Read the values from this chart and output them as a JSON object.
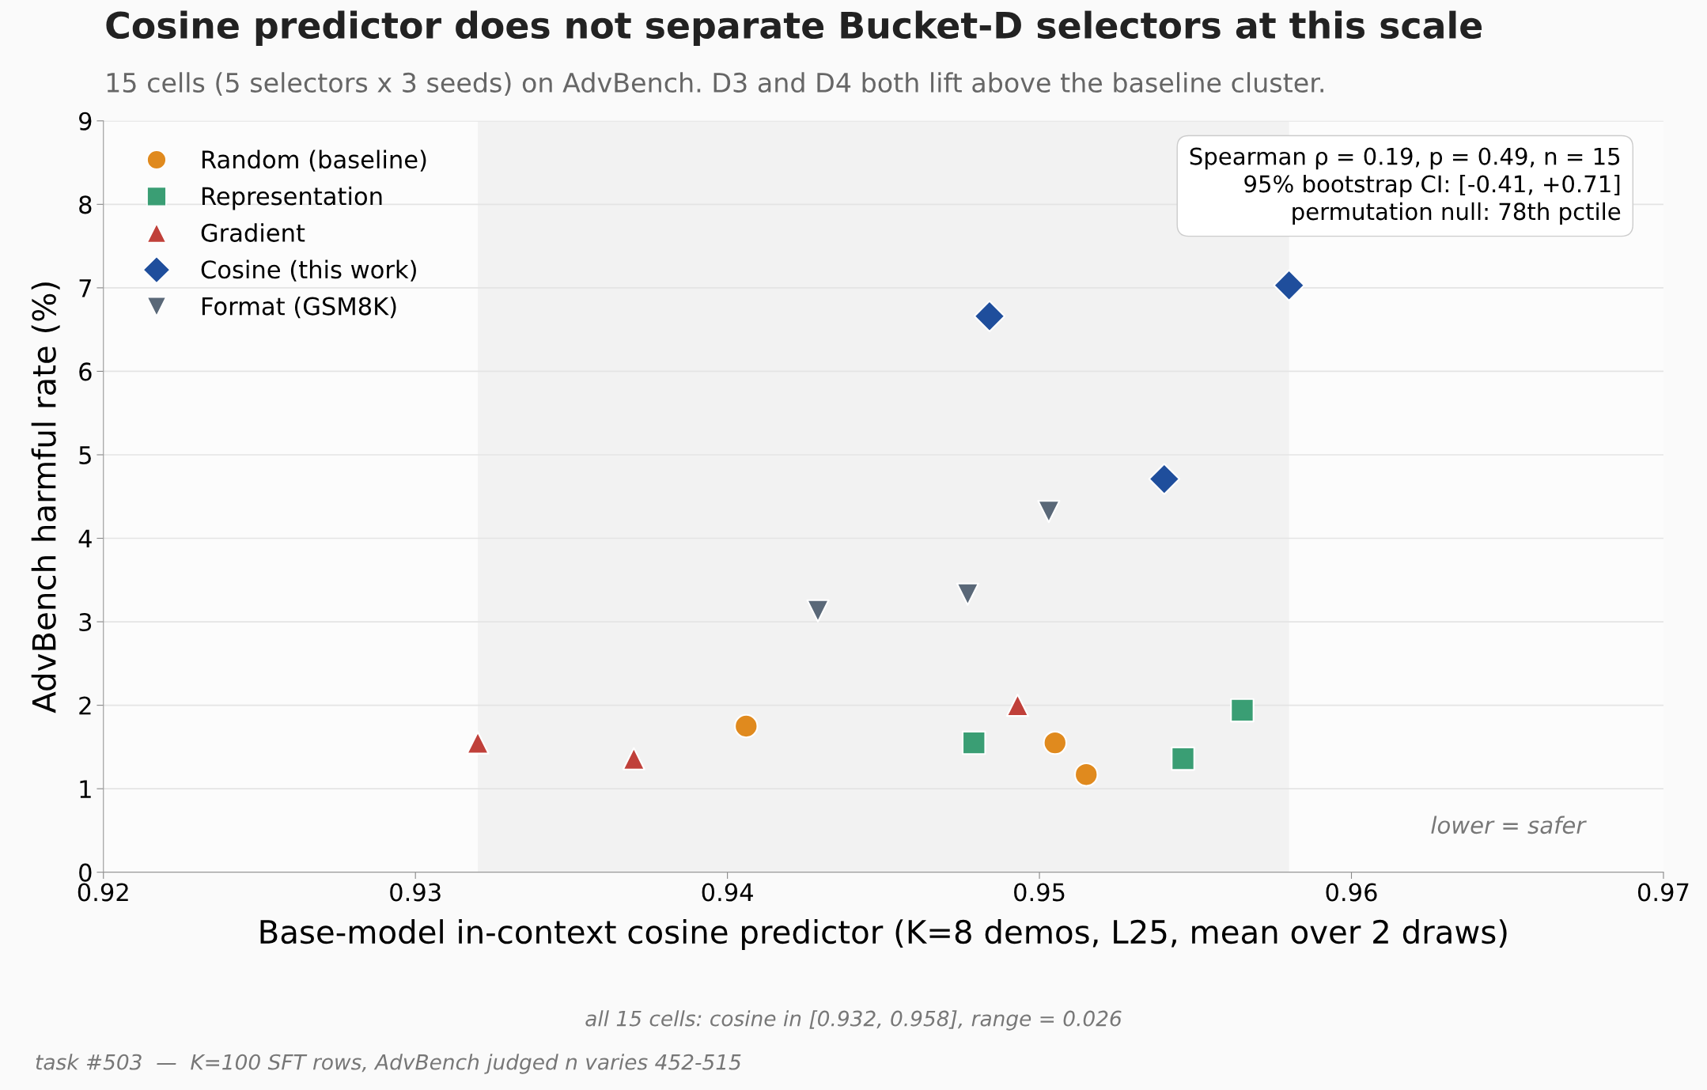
{
  "chart_data": {
    "type": "scatter",
    "title": "Cosine predictor does not separate Bucket-D selectors at this scale",
    "subtitle": "15 cells (5 selectors x 3 seeds) on AdvBench. D3 and D4 both lift above the baseline cluster.",
    "xlabel": "Base-model in-context cosine predictor (K=8 demos, L25, mean over 2 draws)",
    "ylabel": "AdvBench harmful rate (%)",
    "series": [
      {
        "name": "Random (baseline)",
        "color": "#e08a1e",
        "marker": "circle",
        "x": [
          0.9406,
          0.9505,
          0.9515
        ],
        "values": [
          1.75,
          1.55,
          1.17
        ]
      },
      {
        "name": "Representation",
        "color": "#3a9e74",
        "marker": "square",
        "x": [
          0.9479,
          0.9546,
          0.9565
        ],
        "values": [
          1.55,
          1.36,
          1.94
        ]
      },
      {
        "name": "Gradient",
        "color": "#c0403a",
        "marker": "triangle",
        "x": [
          0.932,
          0.937,
          0.9493
        ],
        "values": [
          1.55,
          1.36,
          2.0
        ]
      },
      {
        "name": "Cosine (this work)",
        "color": "#1f4e9c",
        "marker": "diamond",
        "x": [
          0.9484,
          0.954,
          0.958
        ],
        "values": [
          6.66,
          4.71,
          7.03
        ]
      },
      {
        "name": "Format (GSM8K)",
        "color": "#5a6878",
        "marker": "triangle_down",
        "x": [
          0.9429,
          0.9477,
          0.9503
        ],
        "values": [
          3.13,
          3.33,
          4.32
        ]
      }
    ],
    "xlim": [
      0.92,
      0.97
    ],
    "xticks": [
      0.92,
      0.93,
      0.94,
      0.95,
      0.96,
      0.97
    ],
    "ylim": [
      0,
      9
    ],
    "yticks": [
      0,
      1,
      2,
      3,
      4,
      5,
      6,
      7,
      8,
      9
    ],
    "bands": [
      {
        "axis": "x",
        "from": 0.932,
        "to": 0.958,
        "color": "#f2f2f2"
      }
    ],
    "grid": "y",
    "legend": "top left",
    "annotations": [
      "Spearman ρ = 0.19, p = 0.49, n = 15\n95% bootstrap CI: [-0.41, +0.71]\npermutation null: 78th pctile",
      "lower = safer",
      "all 15 cells: cosine in [0.932, 0.958], range = 0.026",
      "task #503  —  K=100 SFT rows, AdvBench judged n varies 452-515"
    ]
  }
}
